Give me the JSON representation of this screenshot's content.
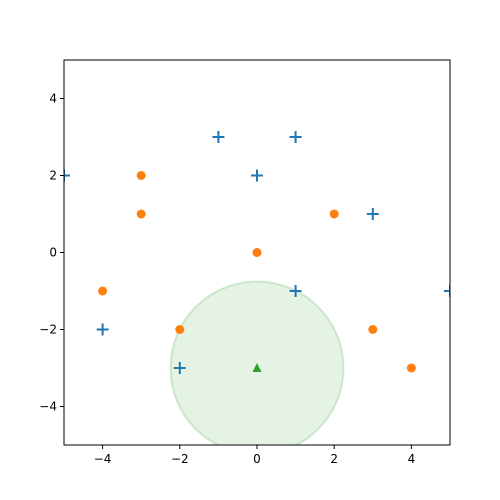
{
  "chart_data": {
    "type": "scatter",
    "xlim": [
      -5,
      5
    ],
    "ylim": [
      -5,
      5
    ],
    "xticks": [
      {
        "value": -4,
        "label": "−4"
      },
      {
        "value": -2,
        "label": "−2"
      },
      0,
      2,
      4
    ],
    "yticks": [
      {
        "value": -4,
        "label": "−4"
      },
      {
        "value": -2,
        "label": "−2"
      },
      0,
      2,
      4
    ],
    "series": [
      {
        "color": "#1f77b4",
        "marker": "plus",
        "x": [
          -1,
          1,
          0,
          -5,
          3,
          1,
          5,
          -4,
          -2
        ],
        "values": [
          3,
          3,
          2,
          2,
          1,
          -1,
          -1,
          -2,
          -3
        ]
      },
      {
        "color": "#ff7f0e",
        "marker": "circle",
        "x": [
          -3,
          -3,
          2,
          0,
          -4,
          -2,
          3,
          4
        ],
        "values": [
          2,
          1,
          1,
          0,
          -1,
          -2,
          -2,
          -3
        ]
      },
      {
        "color": "#2ca02c",
        "marker": "triangle",
        "x": [
          0
        ],
        "values": [
          -3
        ]
      }
    ],
    "circles": [
      {
        "cx": 0,
        "cy": -3,
        "r": 2.24,
        "color": "#2ca02c"
      }
    ]
  }
}
